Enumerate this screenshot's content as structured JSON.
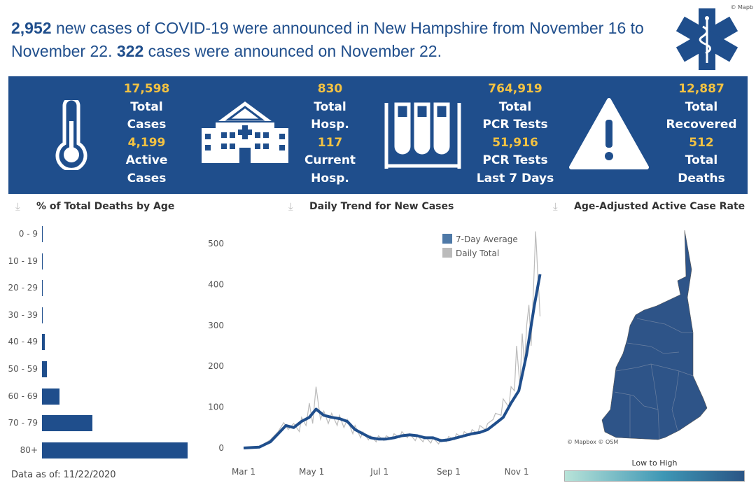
{
  "headline": {
    "weekly_cases": "2,952",
    "part1": " new cases of COVID-19 were announced in New Hampshire from November 16 to November 22. ",
    "day_cases": "322",
    "part2": " cases were announced on November 22."
  },
  "map_credit_top": "© Mapb",
  "stats": {
    "total_cases": "17,598",
    "total_cases_label1": "Total",
    "total_cases_label2": "Cases",
    "active_cases": "4,199",
    "active_cases_label1": "Active",
    "active_cases_label2": "Cases",
    "total_hosp": "830",
    "total_hosp_label1": "Total",
    "total_hosp_label2": "Hosp.",
    "current_hosp": "117",
    "current_hosp_label1": "Current",
    "current_hosp_label2": "Hosp.",
    "pcr_total": "764,919",
    "pcr_total_label1": "Total",
    "pcr_total_label2": "PCR Tests",
    "pcr_7": "51,916",
    "pcr_7_label1": "PCR Tests",
    "pcr_7_label2": "Last 7 Days",
    "recovered": "12,887",
    "recovered_label1": "Total",
    "recovered_label2": "Recovered",
    "deaths": "512",
    "deaths_label1": "Total",
    "deaths_label2": "Deaths"
  },
  "panels": {
    "deaths_title": "% of Total Deaths by Age",
    "trend_title": "Daily Trend for New Cases",
    "map_title": "Age-Adjusted Active Case Rate",
    "data_as_of": "Data as of: 11/22/2020",
    "map_credit": "© Mapbox © OSM",
    "legend_label": "Low to High"
  },
  "colors": {
    "primary": "#1f4e8c",
    "accent": "#f3c242",
    "daily": "#bbbbbb"
  },
  "chart_data": [
    {
      "type": "bar",
      "title": "% of Total Deaths by Age",
      "categories": [
        "0 - 9",
        "10 - 19",
        "20 - 29",
        "30 - 39",
        "40 - 49",
        "50 - 59",
        "60 - 69",
        "70 - 79",
        "80+"
      ],
      "values": [
        0.1,
        0.1,
        0.2,
        0.2,
        1.3,
        2.2,
        7.9,
        22.6,
        65.4
      ]
    },
    {
      "type": "line",
      "title": "Daily Trend for New Cases",
      "xlabel": "",
      "ylabel": "",
      "ylim": [
        0,
        500
      ],
      "yticks": [
        0,
        100,
        200,
        300,
        400,
        500
      ],
      "xticks": [
        "Mar 1",
        "May 1",
        "Jul 1",
        "Sep 1",
        "Nov 1"
      ],
      "xtick_days": [
        0,
        61,
        122,
        184,
        245
      ],
      "legend": [
        "7-Day Average",
        "Daily Total"
      ],
      "series": [
        {
          "name": "7-Day Average",
          "days": [
            0,
            14,
            24,
            31,
            38,
            45,
            52,
            59,
            65,
            72,
            79,
            86,
            93,
            100,
            107,
            114,
            121,
            128,
            135,
            142,
            149,
            156,
            163,
            170,
            177,
            184,
            191,
            198,
            205,
            212,
            219,
            226,
            233,
            240,
            247,
            254,
            261,
            266
          ],
          "values": [
            0,
            2,
            15,
            35,
            55,
            50,
            65,
            75,
            95,
            80,
            75,
            72,
            65,
            45,
            35,
            25,
            22,
            22,
            25,
            30,
            32,
            30,
            25,
            25,
            18,
            20,
            25,
            30,
            35,
            38,
            45,
            60,
            75,
            110,
            140,
            230,
            350,
            425
          ]
        },
        {
          "name": "Daily Total",
          "days": [
            0,
            14,
            24,
            31,
            36,
            40,
            45,
            50,
            52,
            56,
            59,
            62,
            65,
            69,
            72,
            76,
            79,
            84,
            86,
            90,
            93,
            98,
            100,
            105,
            107,
            112,
            114,
            119,
            121,
            126,
            128,
            133,
            135,
            140,
            142,
            147,
            149,
            154,
            156,
            161,
            163,
            168,
            170,
            175,
            177,
            182,
            184,
            189,
            191,
            196,
            198,
            203,
            205,
            210,
            212,
            217,
            219,
            224,
            226,
            231,
            233,
            238,
            240,
            243,
            245,
            248,
            250,
            252,
            254,
            256,
            258,
            260,
            261,
            262,
            263,
            264,
            265,
            266
          ],
          "values": [
            0,
            3,
            20,
            40,
            62,
            45,
            60,
            40,
            75,
            55,
            110,
            60,
            150,
            70,
            90,
            60,
            85,
            55,
            80,
            50,
            70,
            35,
            55,
            25,
            40,
            20,
            30,
            15,
            30,
            18,
            30,
            22,
            35,
            25,
            40,
            25,
            35,
            18,
            30,
            15,
            28,
            12,
            25,
            10,
            22,
            15,
            28,
            20,
            35,
            25,
            40,
            30,
            45,
            35,
            55,
            45,
            60,
            70,
            85,
            80,
            120,
            100,
            150,
            140,
            250,
            150,
            280,
            200,
            300,
            350,
            250,
            380,
            450,
            530,
            480,
            420,
            380,
            322
          ]
        }
      ]
    }
  ]
}
